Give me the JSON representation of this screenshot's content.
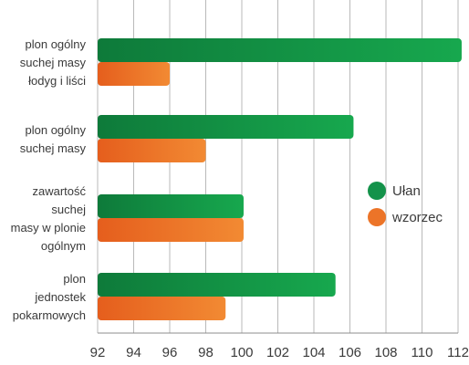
{
  "colors": {
    "ulan_dark": "#0e7a3a",
    "ulan_light": "#17a84e",
    "wzorzec_dark": "#e55e1d",
    "wzorzec_light": "#f28a33",
    "grid": "#b9b9b9",
    "text": "#3a3a3a"
  },
  "chart_data": {
    "type": "bar",
    "orientation": "horizontal",
    "categories": [
      [
        "plon ogólny",
        "suchej masy",
        "łodyg i liści"
      ],
      [
        "plon ogólny",
        "suchej masy"
      ],
      [
        "zawartość",
        "suchej",
        "masy w plonie",
        "ogólnym"
      ],
      [
        "plon",
        "jednostek",
        "pokarmowych"
      ]
    ],
    "series": [
      {
        "name": "Ułan",
        "values": [
          112.2,
          106.2,
          100.1,
          105.2
        ]
      },
      {
        "name": "wzorzec",
        "values": [
          96.0,
          98.0,
          100.1,
          99.1
        ]
      }
    ],
    "xlim": [
      92,
      112
    ],
    "xticks": [
      92,
      94,
      96,
      98,
      100,
      102,
      104,
      106,
      108,
      110,
      112
    ],
    "title": "",
    "xlabel": "",
    "ylabel": "",
    "grid": true,
    "legend": "right"
  },
  "legend": {
    "items": [
      {
        "label": "Ułan",
        "color": "#13924a"
      },
      {
        "label": "wzorzec",
        "color": "#ec7428"
      }
    ]
  }
}
